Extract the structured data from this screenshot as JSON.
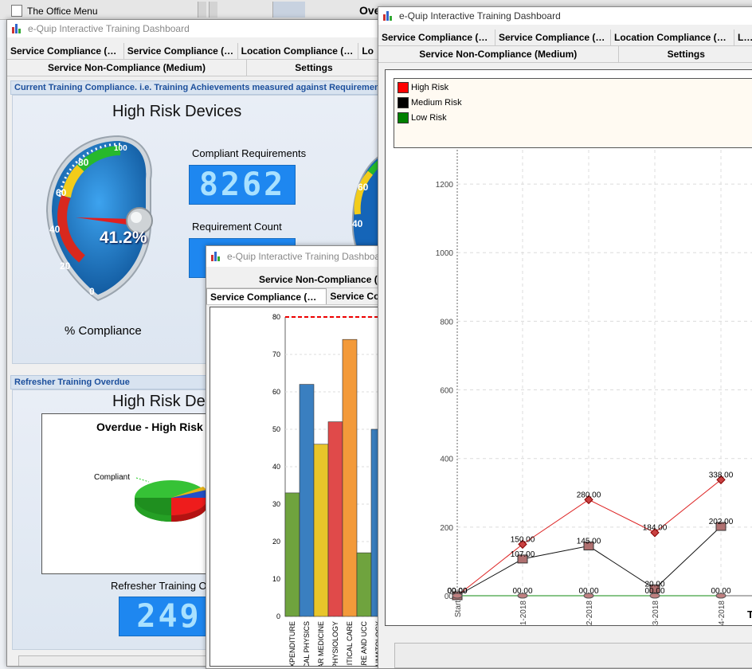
{
  "office_menu": {
    "title": "The Office Menu",
    "right_fragment": "Ove"
  },
  "app_title": "e-Quip Interactive Training Dashboard",
  "win1": {
    "tabs_row1": [
      "Service Compliance (Hig...",
      "Service Compliance (Me...",
      "Location Compliance (Hig...",
      "Lo"
    ],
    "tabs_row2": [
      "Service Non-Compliance (Medium)",
      "Settings"
    ],
    "section1_header": "Current Training Compliance. i.e. Training Achievements measured against Requirements",
    "gauge_title": "High Risk Devices",
    "gauge_value": "41.2%",
    "gauge_ticks": [
      "0",
      "20",
      "40",
      "60",
      "80",
      "100"
    ],
    "gauge2_ticks": [
      "60",
      "40"
    ],
    "gauge_caption": "% Compliance",
    "compliant_label": "Compliant Requirements",
    "compliant_value": "8262",
    "requirement_label": "Requirement Count",
    "section2_header": "Refresher Training Overdue",
    "section2_title": "High Risk Dev",
    "pie_title": "Overdue - High Risk D",
    "pie_label": "Compliant",
    "refresher_label": "Refresher Training O",
    "refresher_value": "249"
  },
  "win2": {
    "tabs_row1": [
      "Service Non-Compliance (M"
    ],
    "tabs_row2": [
      "Service Compliance (High)",
      "Service Co"
    ]
  },
  "win3": {
    "tabs_row1": [
      "Service Compliance (Hig...",
      "Service Compliance (Me...",
      "Location Compliance (Hig...",
      "Lo"
    ],
    "tabs_row2": [
      "Service Non-Compliance (Medium)",
      "Settings"
    ],
    "partial_label": "T"
  },
  "colors": {
    "high": "#ff0000",
    "medium": "#000000",
    "low": "#008000"
  },
  "chart_data": [
    {
      "type": "bar",
      "categories": [
        "EXPENDITURE",
        "ICAL PHYSICS",
        "EAR MEDICINE",
        "OPHYSIOLOGY",
        "RITICAL CARE",
        "CARE AND UCC",
        "HEUMATOLOGY"
      ],
      "values": [
        33,
        62,
        46,
        52,
        74,
        17,
        50
      ],
      "colors": [
        "#6fa33e",
        "#3a7fc0",
        "#e8c52a",
        "#e04a4a",
        "#f39a3a",
        "#6fa33e",
        "#3a7fc0"
      ],
      "ylim": [
        0,
        80
      ],
      "yticks": [
        0,
        10,
        20,
        30,
        40,
        50,
        60,
        70,
        80
      ],
      "threshold": 80
    },
    {
      "type": "line",
      "x": [
        "Start",
        "01-2018",
        "02-2018",
        "03-2018",
        "04-2018"
      ],
      "series": [
        {
          "name": "High Risk",
          "values": [
            0,
            150,
            280,
            184,
            338
          ],
          "labels": [
            "00.00",
            "150.00",
            "280.00",
            "184.00",
            "338.00"
          ]
        },
        {
          "name": "Medium Risk",
          "values": [
            0,
            107,
            145,
            20,
            202
          ],
          "labels": [
            "00.00",
            "107.00",
            "145.00",
            "20.00",
            "202.00"
          ]
        },
        {
          "name": "Low Risk",
          "values": [
            0,
            0,
            0,
            0,
            0
          ],
          "labels": [
            "00.00",
            "00.00",
            "00.00",
            "00.00",
            "00.00"
          ]
        }
      ],
      "ylim": [
        0,
        1300
      ],
      "yticks": [
        0,
        200,
        400,
        600,
        800,
        1000,
        1200
      ],
      "ytick_labels": [
        "00",
        "200",
        "400",
        "600",
        "800",
        "1000",
        "1200"
      ]
    }
  ]
}
